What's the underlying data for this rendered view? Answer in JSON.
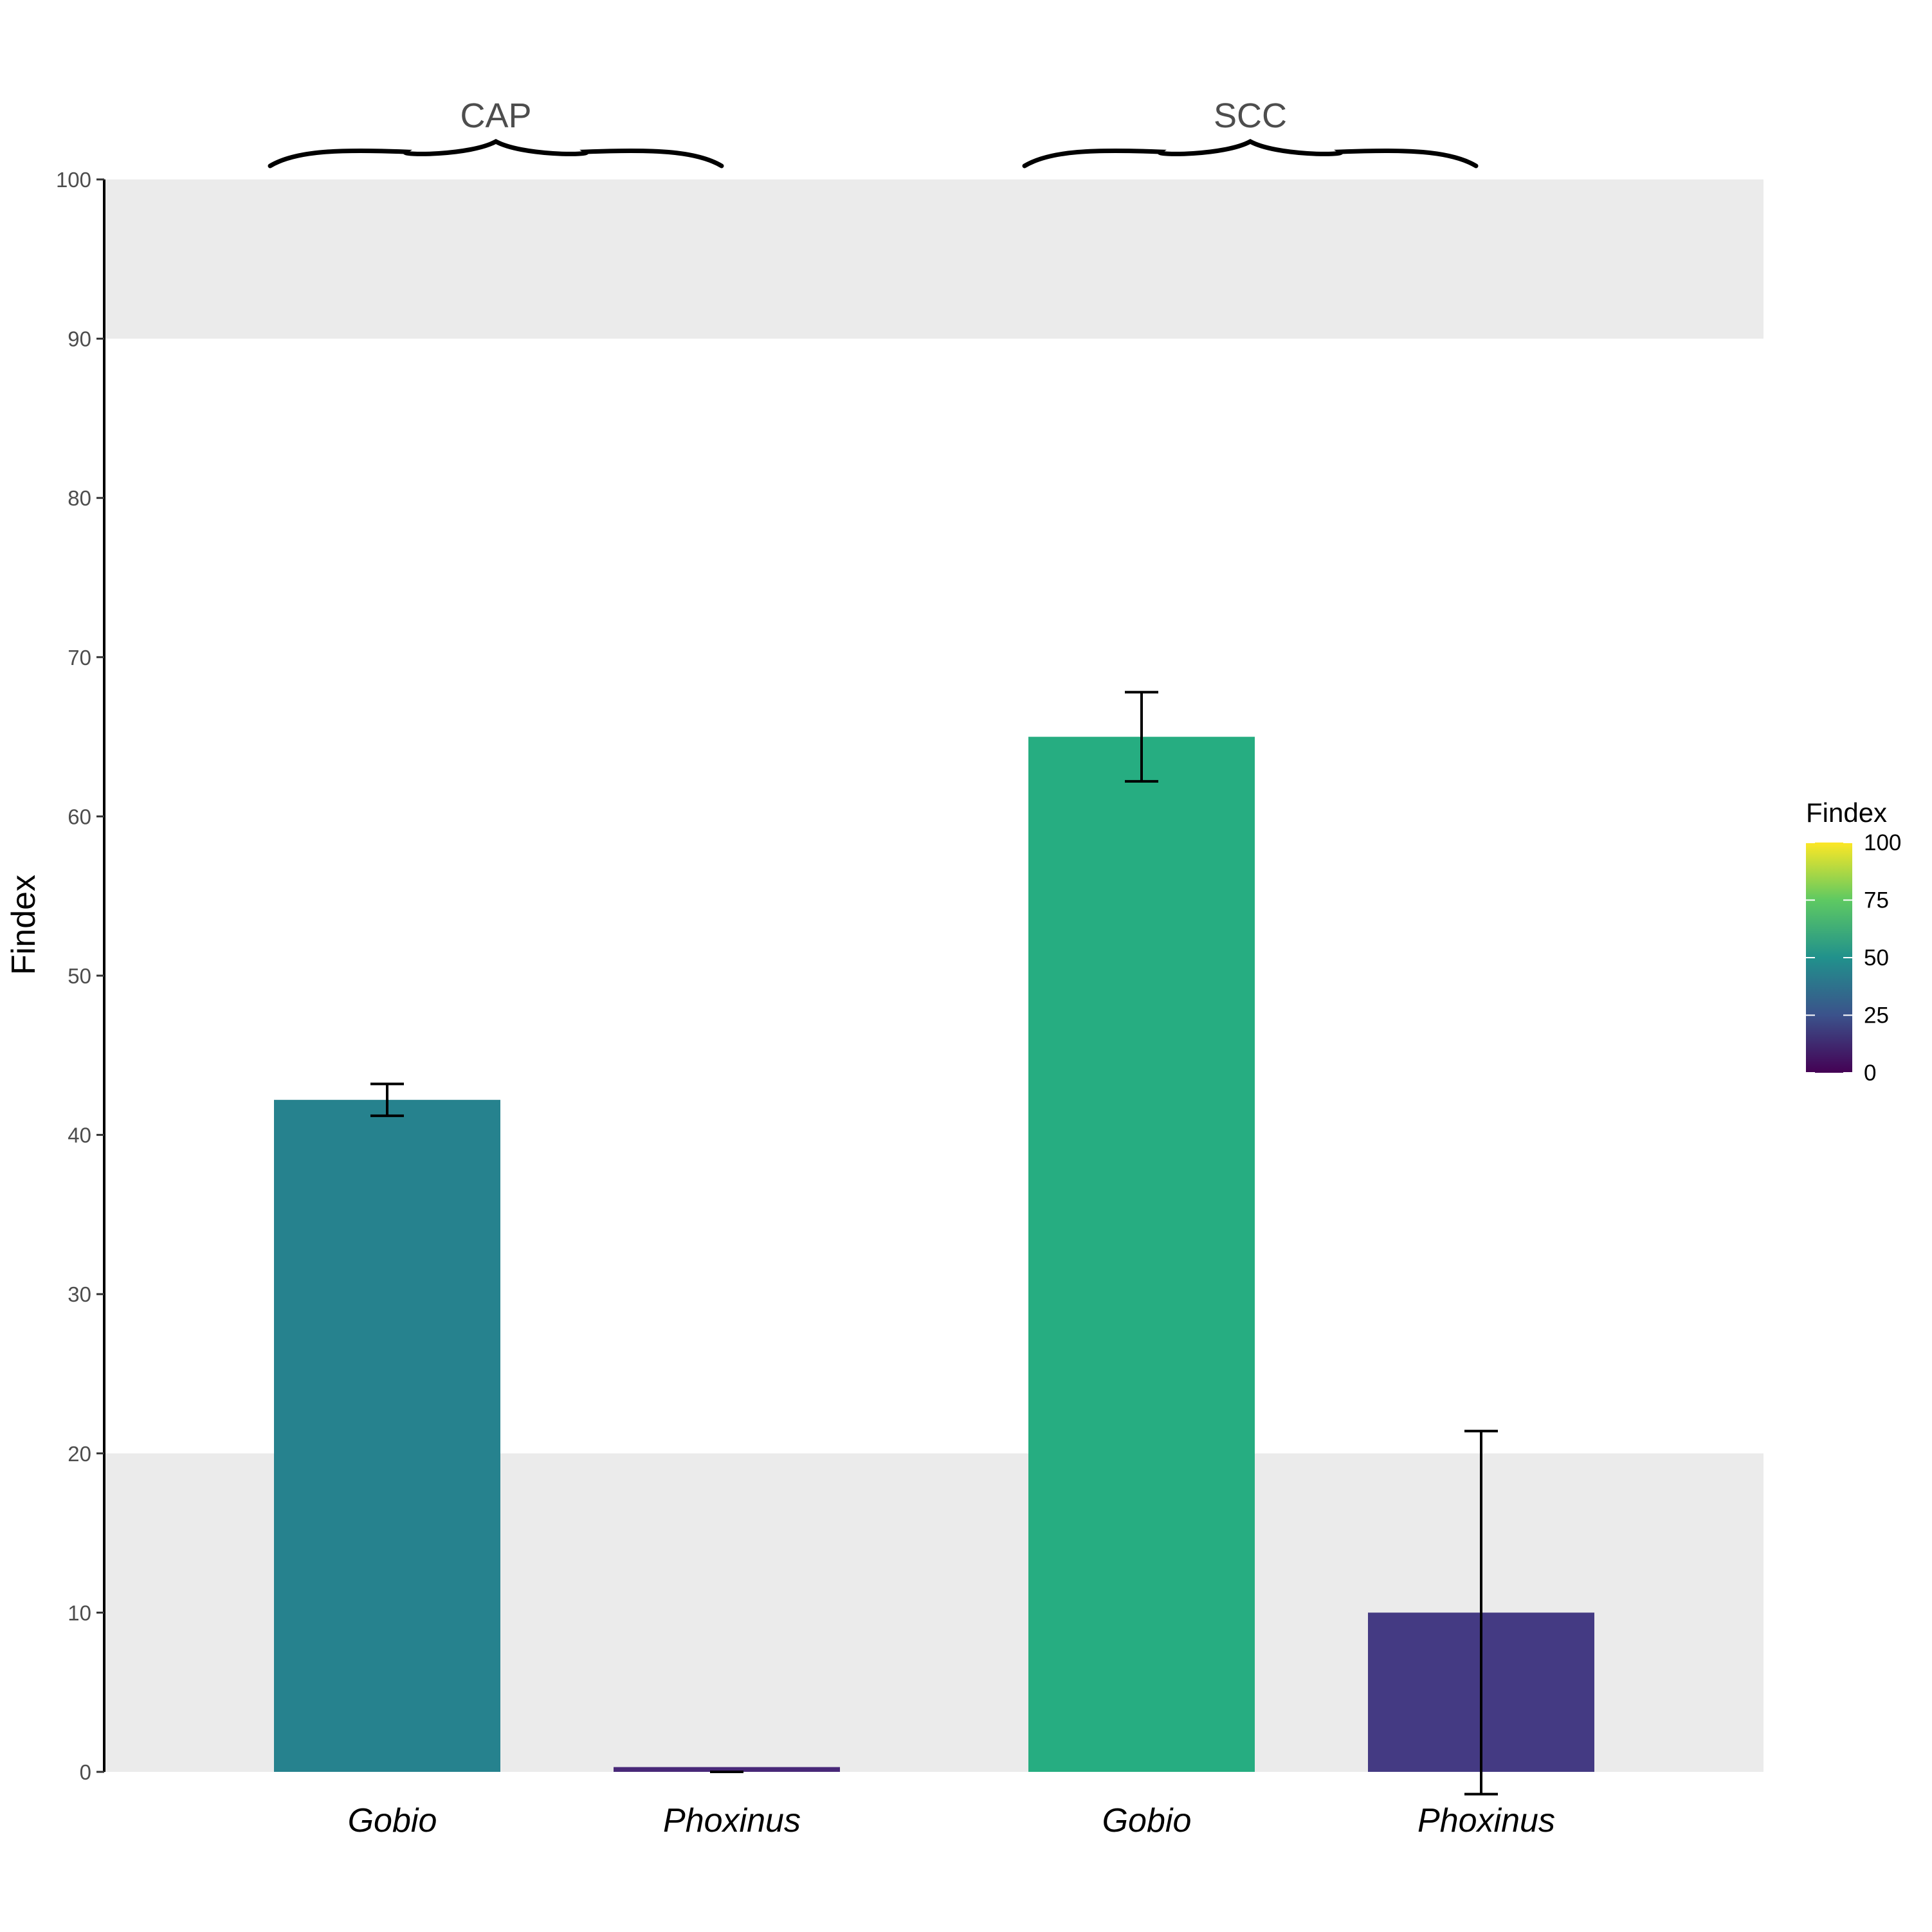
{
  "chart_data": {
    "type": "bar",
    "ylabel": "Findex",
    "ylim": [
      0,
      100
    ],
    "y_ticks": [
      "0",
      "10",
      "20",
      "30",
      "40",
      "50",
      "60",
      "70",
      "80",
      "90",
      "100"
    ],
    "shaded_bands": [
      {
        "from": 0,
        "to": 20,
        "color": "#ebebeb"
      },
      {
        "from": 90,
        "to": 100,
        "color": "#ebebeb"
      }
    ],
    "groups": [
      {
        "label": "CAP",
        "bars": [
          {
            "category": "Gobio",
            "value": 42.2,
            "error_low": 41.2,
            "error_high": 43.2,
            "color": "#26828e"
          },
          {
            "category": "Phoxinus",
            "value": 0.3,
            "error_low": 0.0,
            "error_high": 0.0,
            "color": "#482878"
          }
        ]
      },
      {
        "label": "SCC",
        "bars": [
          {
            "category": "Gobio",
            "value": 65.0,
            "error_low": 62.2,
            "error_high": 67.8,
            "color": "#26ad81"
          },
          {
            "category": "Phoxinus",
            "value": 10.0,
            "error_low": -1.4,
            "error_high": 21.4,
            "color": "#443a83"
          }
        ]
      }
    ],
    "legend": {
      "title": "Findex",
      "position": "right",
      "scale": "viridis",
      "range": [
        0,
        100
      ],
      "ticks": [
        "0",
        "25",
        "50",
        "75",
        "100"
      ],
      "colors": [
        "#440154",
        "#3b528b",
        "#21918c",
        "#5ec962",
        "#fde725"
      ]
    }
  }
}
